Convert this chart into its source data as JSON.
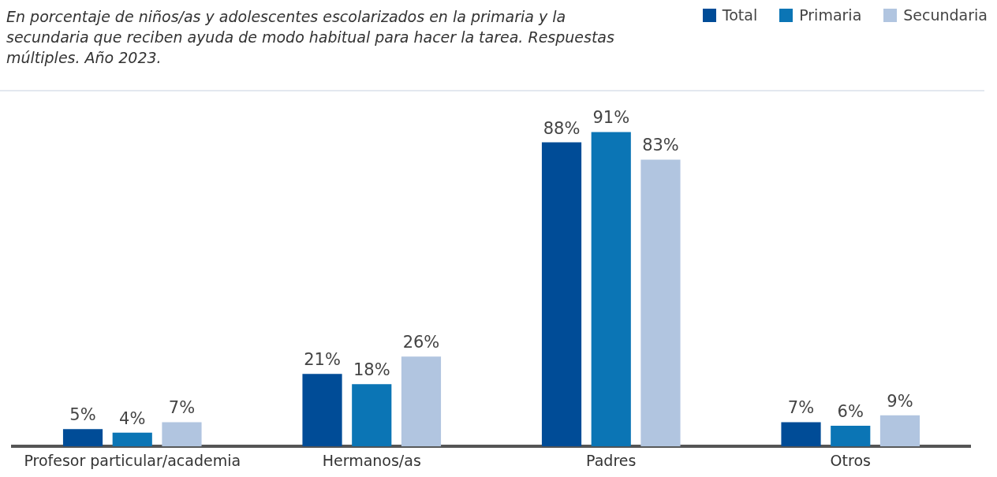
{
  "chart_data": {
    "type": "bar",
    "title": "En porcentaje de niños/as y adolescentes escolarizados en la primaria y la secundaria que reciben ayuda de modo habitual para hacer la tarea. Respuestas múltiples. Año 2023.",
    "categories": [
      "Profesor particular/academia",
      "Hermanos/as",
      "Padres",
      "Otros"
    ],
    "series": [
      {
        "name": "Total",
        "color": "#004c97",
        "values": [
          5,
          21,
          88,
          7
        ],
        "value_labels": [
          "5%",
          "21%",
          "88%",
          "7%"
        ]
      },
      {
        "name": "Primaria",
        "color": "#0b75b5",
        "values": [
          4,
          18,
          91,
          6
        ],
        "value_labels": [
          "4%",
          "18%",
          "91%",
          "6%"
        ]
      },
      {
        "name": "Secundaria",
        "color": "#b1c5e0",
        "values": [
          7,
          26,
          83,
          9
        ],
        "value_labels": [
          "7%",
          "26%",
          "83%",
          "9%"
        ]
      }
    ],
    "relative": false,
    "grid": false,
    "legend": "top right"
  }
}
